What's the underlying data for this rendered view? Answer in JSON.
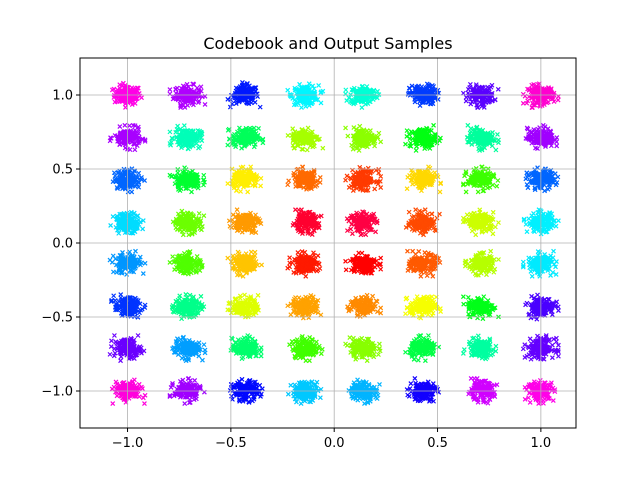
{
  "chart_data": {
    "type": "scatter",
    "title": "Codebook and Output Samples",
    "xlabel": "",
    "ylabel": "",
    "xlim": [
      -1.23,
      1.17
    ],
    "ylim": [
      -1.25,
      1.25
    ],
    "grid": true,
    "x_ticks": [
      -1.0,
      -0.5,
      0.0,
      0.5,
      1.0
    ],
    "x_tick_labels": [
      "−1.0",
      "−0.5",
      "0.0",
      "0.5",
      "1.0"
    ],
    "y_ticks": [
      1.0,
      0.5,
      0.0,
      -0.5,
      -1.0
    ],
    "y_tick_labels": [
      "1.0",
      "0.5",
      "0.0",
      "−0.5",
      "−1.0"
    ],
    "marker": "x",
    "columns_x": [
      -1.0,
      -0.71,
      -0.43,
      -0.14,
      0.14,
      0.43,
      0.71,
      1.0
    ],
    "rows_y": [
      1.0,
      0.71,
      0.43,
      0.14,
      -0.14,
      -0.43,
      -0.71,
      -1.0
    ],
    "cluster_colors": [
      [
        "#ff00e6",
        "#b000ff",
        "#0018ff",
        "#00f6ff",
        "#00ffd5",
        "#003cff",
        "#5a00ff",
        "#ff00d0"
      ],
      [
        "#a800ff",
        "#00ffb8",
        "#00ff5a",
        "#a6ff00",
        "#8cff00",
        "#00ff12",
        "#00ff9c",
        "#a000ff"
      ],
      [
        "#0066ff",
        "#00ff30",
        "#ffee00",
        "#ff6a00",
        "#ff3a00",
        "#ffd800",
        "#3cff00",
        "#0066ff"
      ],
      [
        "#00dcff",
        "#6cff00",
        "#ff9a00",
        "#ff0030",
        "#ff0044",
        "#ff4a00",
        "#ccff00",
        "#00f0ff"
      ],
      [
        "#0096ff",
        "#50ff00",
        "#ffc400",
        "#ff1a00",
        "#ff0000",
        "#ff5a00",
        "#b6ff00",
        "#00eaff"
      ],
      [
        "#0034ff",
        "#00ff8a",
        "#ddff00",
        "#ffa200",
        "#ff8a00",
        "#f6ff00",
        "#00ff18",
        "#4a00ff"
      ],
      [
        "#6a00ff",
        "#009eff",
        "#00ff6c",
        "#40ff00",
        "#88ff00",
        "#00ff44",
        "#00ffa0",
        "#6400ff"
      ],
      [
        "#ff00dc",
        "#a000ff",
        "#0008ff",
        "#00c8ff",
        "#00b4ff",
        "#1200ff",
        "#d000ff",
        "#ff00e8"
      ]
    ]
  }
}
